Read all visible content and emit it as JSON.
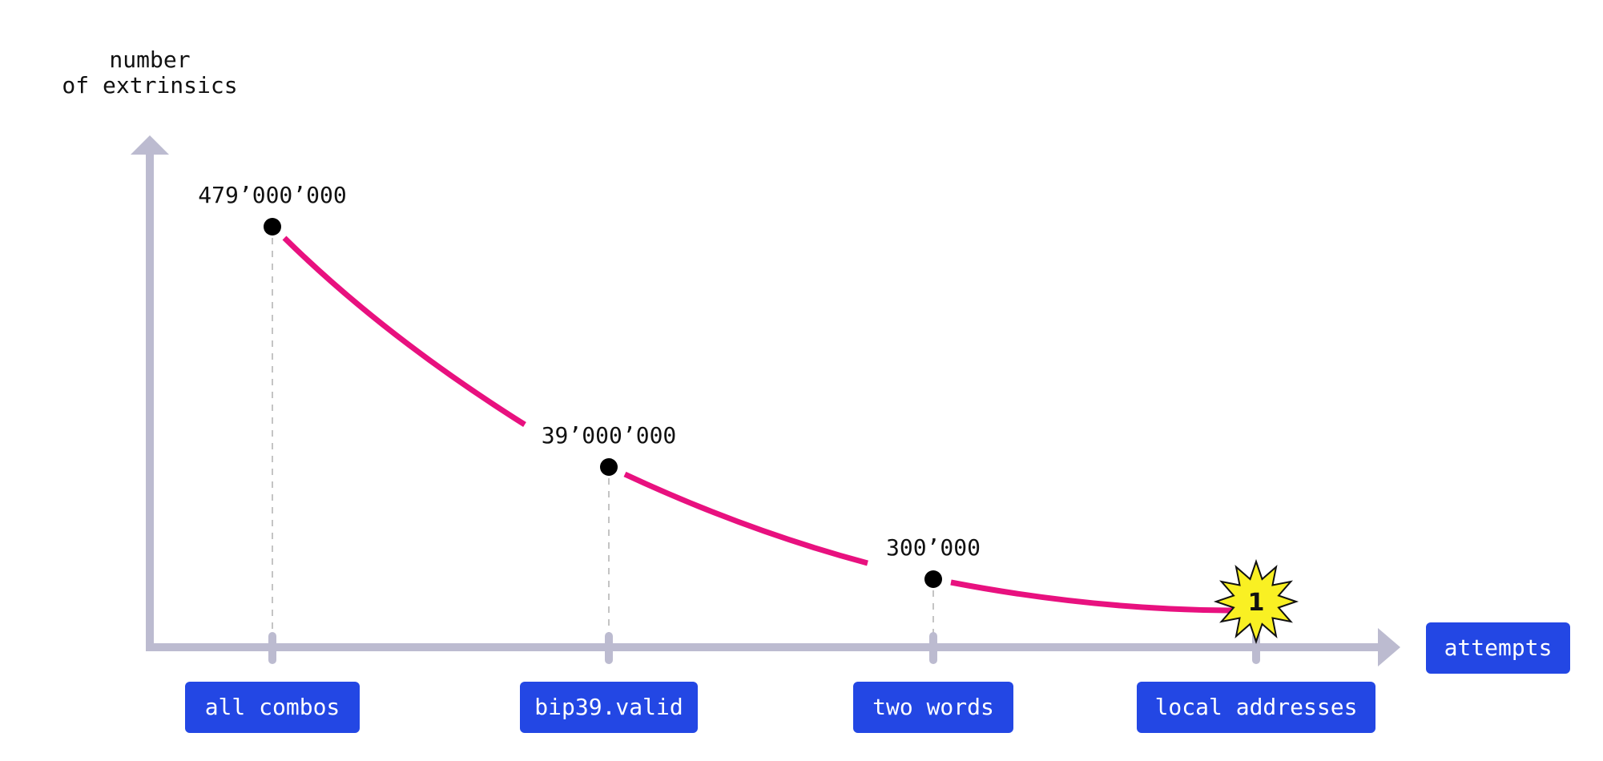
{
  "chart_data": {
    "type": "line",
    "y_label_lines": [
      "number",
      "of extrinsics"
    ],
    "x_label": "attempts",
    "categories": [
      "all combos",
      "bip39.valid",
      "two words",
      "local addresses"
    ],
    "points": [
      {
        "category": "all combos",
        "value": 479000000,
        "label": "479’000’000"
      },
      {
        "category": "bip39.valid",
        "value": 39000000,
        "label": "39’000’000"
      },
      {
        "category": "two words",
        "value": 300000,
        "label": "300’000"
      },
      {
        "category": "local addresses",
        "value": 1,
        "label": "1",
        "marker": "starburst"
      }
    ],
    "grid": false,
    "legend": "none"
  },
  "colors": {
    "axis": "#bcbbd0",
    "curve": "#e8117f",
    "point": "#000000",
    "pill": "#2347e4",
    "pill_text": "#ffffff",
    "star_fill": "#f9f023",
    "dashed_guide": "#c4c4c4"
  }
}
